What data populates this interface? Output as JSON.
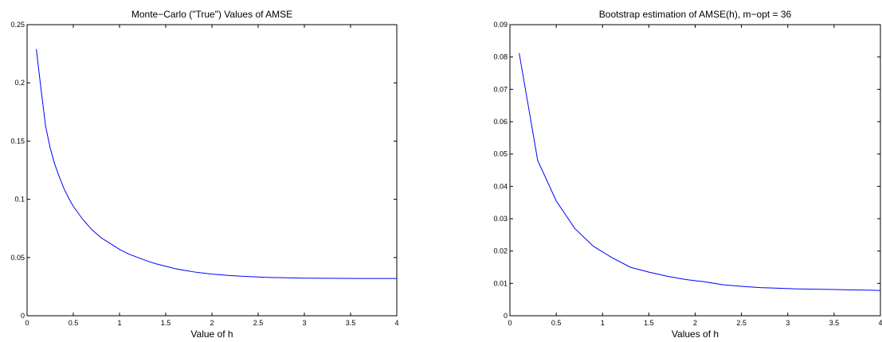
{
  "chart_data": [
    {
      "type": "line",
      "title": "Monte−Carlo (\"True\") Values of AMSE",
      "xlabel": "Value of h",
      "ylabel": "",
      "xlim": [
        0,
        4
      ],
      "ylim": [
        0,
        0.25
      ],
      "xticks": [
        0,
        0.5,
        1,
        1.5,
        2,
        2.5,
        3,
        3.5,
        4
      ],
      "xtick_labels": [
        "0",
        "0.5",
        "1",
        "1.5",
        "2",
        "2.5",
        "3",
        "3.5",
        "4"
      ],
      "yticks": [
        0,
        0.05,
        0.1,
        0.15,
        0.2,
        0.25
      ],
      "ytick_labels": [
        "0",
        "0.05",
        "0.1",
        "0.15",
        "0.2",
        "0.25"
      ],
      "grid": false,
      "series": [
        {
          "color": "#0000ff",
          "x": [
            0.1,
            0.15,
            0.2,
            0.25,
            0.3,
            0.35,
            0.4,
            0.45,
            0.5,
            0.6,
            0.7,
            0.8,
            0.9,
            1.0,
            1.1,
            1.2,
            1.3,
            1.4,
            1.5,
            1.6,
            1.7,
            1.8,
            1.9,
            2.0,
            2.2,
            2.4,
            2.6,
            2.8,
            3.0,
            3.2,
            3.4,
            3.6,
            3.8,
            4.0
          ],
          "y": [
            0.229,
            0.195,
            0.163,
            0.144,
            0.13,
            0.119,
            0.109,
            0.101,
            0.094,
            0.083,
            0.074,
            0.067,
            0.062,
            0.057,
            0.053,
            0.05,
            0.047,
            0.0445,
            0.0425,
            0.0405,
            0.039,
            0.0377,
            0.0367,
            0.0358,
            0.0345,
            0.0336,
            0.033,
            0.0326,
            0.0323,
            0.0322,
            0.0321,
            0.032,
            0.032,
            0.032
          ]
        }
      ]
    },
    {
      "type": "line",
      "title": "Bootstrap estimation of AMSE(h), m−opt = 36",
      "xlabel": "Values of h",
      "ylabel": "",
      "xlim": [
        0,
        4
      ],
      "ylim": [
        0,
        0.09
      ],
      "xticks": [
        0,
        0.5,
        1,
        1.5,
        2,
        2.5,
        3,
        3.5,
        4
      ],
      "xtick_labels": [
        "0",
        "0.5",
        "1",
        "1.5",
        "2",
        "2.5",
        "3",
        "3.5",
        "4"
      ],
      "yticks": [
        0,
        0.01,
        0.02,
        0.03,
        0.04,
        0.05,
        0.06,
        0.07,
        0.08,
        0.09
      ],
      "ytick_labels": [
        "0",
        "0.01",
        "0.02",
        "0.03",
        "0.04",
        "0.05",
        "0.06",
        "0.07",
        "0.08",
        "0.09"
      ],
      "grid": false,
      "series": [
        {
          "color": "#0000ff",
          "x": [
            0.1,
            0.3,
            0.5,
            0.7,
            0.9,
            1.1,
            1.3,
            1.5,
            1.7,
            1.9,
            2.1,
            2.3,
            2.5,
            2.7,
            2.9,
            3.1,
            3.3,
            3.5,
            3.7,
            3.9,
            4.0
          ],
          "y": [
            0.0812,
            0.048,
            0.0355,
            0.027,
            0.0215,
            0.018,
            0.015,
            0.0135,
            0.0122,
            0.0112,
            0.0105,
            0.0096,
            0.0091,
            0.0087,
            0.0085,
            0.0083,
            0.0082,
            0.0081,
            0.008,
            0.0079,
            0.0078
          ]
        }
      ]
    }
  ]
}
